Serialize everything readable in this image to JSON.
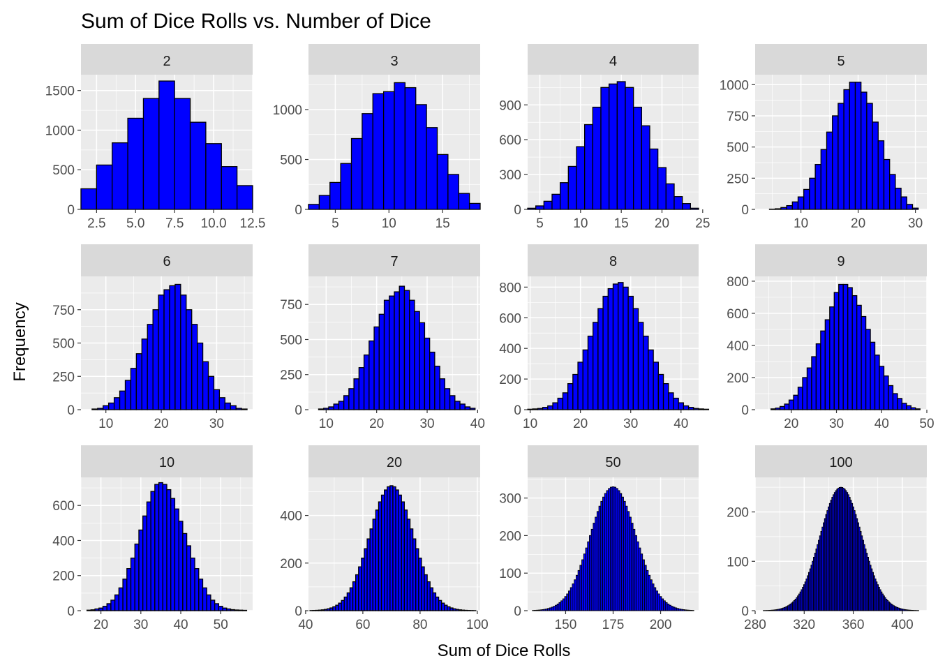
{
  "title": "Sum of Dice Rolls vs. Number of Dice",
  "xlabel": "Sum of Dice Rolls",
  "ylabel": "Frequency",
  "colors": {
    "bar_fill": "#0000ff",
    "bar_stroke": "#000000",
    "panel_bg": "#ebebeb",
    "grid": "#ffffff",
    "strip_bg": "#d9d9d9",
    "tick_text": "#4d4d4d"
  },
  "chart_data": [
    {
      "type": "bar",
      "panel": "2",
      "facet": "2",
      "categories": [
        2,
        3,
        4,
        5,
        6,
        7,
        8,
        9,
        10,
        11,
        12
      ],
      "values": [
        260,
        560,
        840,
        1150,
        1400,
        1620,
        1400,
        1100,
        830,
        540,
        300
      ],
      "xlim": [
        1.5,
        12.5
      ],
      "ylim": [
        0,
        1700
      ],
      "xticks": [
        2.5,
        5.0,
        7.5,
        10.0,
        12.5
      ],
      "xtick_labels": [
        "2.5",
        "5.0",
        "7.5",
        "10.0",
        "12.5"
      ],
      "yticks": [
        0,
        500,
        1000,
        1500
      ],
      "ytick_labels": [
        "0",
        "500",
        "1000",
        "1500"
      ]
    },
    {
      "type": "bar",
      "panel": "3",
      "facet": "3",
      "categories": [
        3,
        4,
        5,
        6,
        7,
        8,
        9,
        10,
        11,
        12,
        13,
        14,
        15,
        16,
        17,
        18
      ],
      "values": [
        50,
        140,
        270,
        460,
        710,
        960,
        1160,
        1180,
        1270,
        1220,
        1050,
        820,
        550,
        350,
        160,
        60
      ],
      "xlim": [
        2.5,
        18.5
      ],
      "ylim": [
        0,
        1350
      ],
      "xticks": [
        5,
        10,
        15
      ],
      "xtick_labels": [
        "5",
        "10",
        "15"
      ],
      "yticks": [
        0,
        500,
        1000
      ],
      "ytick_labels": [
        "0",
        "500",
        "1000"
      ]
    },
    {
      "type": "bar",
      "panel": "4",
      "facet": "4",
      "categories": [
        4,
        5,
        6,
        7,
        8,
        9,
        10,
        11,
        12,
        13,
        14,
        15,
        16,
        17,
        18,
        19,
        20,
        21,
        22,
        23,
        24
      ],
      "values": [
        10,
        30,
        70,
        130,
        230,
        370,
        540,
        730,
        880,
        1050,
        1080,
        1100,
        1050,
        880,
        720,
        520,
        360,
        220,
        110,
        50,
        10
      ],
      "xlim": [
        3.5,
        24.5
      ],
      "ylim": [
        0,
        1160
      ],
      "xticks": [
        5,
        10,
        15,
        20,
        25
      ],
      "xtick_labels": [
        "5",
        "10",
        "15",
        "20",
        "25"
      ],
      "yticks": [
        0,
        300,
        600,
        900
      ],
      "ytick_labels": [
        "0",
        "300",
        "600",
        "900"
      ]
    },
    {
      "type": "bar",
      "panel": "5",
      "facet": "5",
      "categories": [
        5,
        6,
        7,
        8,
        9,
        10,
        11,
        12,
        13,
        14,
        15,
        16,
        17,
        18,
        19,
        20,
        21,
        22,
        23,
        24,
        25,
        26,
        27,
        28,
        29,
        30
      ],
      "values": [
        2,
        5,
        15,
        30,
        60,
        100,
        160,
        250,
        360,
        480,
        620,
        750,
        850,
        960,
        1020,
        1020,
        940,
        850,
        700,
        550,
        400,
        280,
        170,
        100,
        40,
        10
      ],
      "xlim": [
        2,
        32
      ],
      "ylim": [
        0,
        1080
      ],
      "xticks": [
        10,
        20,
        30
      ],
      "xtick_labels": [
        "10",
        "20",
        "30"
      ],
      "yticks": [
        0,
        250,
        500,
        750,
        1000
      ],
      "ytick_labels": [
        "0",
        "250",
        "500",
        "750",
        "1000"
      ]
    },
    {
      "type": "bar",
      "panel": "6",
      "facet": "6",
      "categories": [
        8,
        9,
        10,
        11,
        12,
        13,
        14,
        15,
        16,
        17,
        18,
        19,
        20,
        21,
        22,
        23,
        24,
        25,
        26,
        27,
        28,
        29,
        30,
        31,
        32,
        33,
        34,
        35
      ],
      "values": [
        5,
        10,
        30,
        50,
        90,
        140,
        220,
        310,
        420,
        530,
        640,
        750,
        860,
        900,
        930,
        940,
        860,
        750,
        640,
        500,
        360,
        250,
        150,
        90,
        50,
        30,
        10,
        5
      ],
      "xlim": [
        5.5,
        36.5
      ],
      "ylim": [
        0,
        1000
      ],
      "xticks": [
        10,
        20,
        30
      ],
      "xtick_labels": [
        "10",
        "20",
        "30"
      ],
      "yticks": [
        0,
        250,
        500,
        750
      ],
      "ytick_labels": [
        "0",
        "250",
        "500",
        "750"
      ]
    },
    {
      "type": "bar",
      "panel": "7",
      "facet": "7",
      "categories": [
        9,
        10,
        11,
        12,
        13,
        14,
        15,
        16,
        17,
        18,
        19,
        20,
        21,
        22,
        23,
        24,
        25,
        26,
        27,
        28,
        29,
        30,
        31,
        32,
        33,
        34,
        35,
        36,
        37,
        38,
        39
      ],
      "values": [
        5,
        10,
        20,
        40,
        60,
        100,
        150,
        220,
        300,
        390,
        490,
        590,
        680,
        780,
        810,
        840,
        880,
        850,
        780,
        700,
        620,
        510,
        410,
        310,
        220,
        150,
        100,
        60,
        40,
        20,
        10
      ],
      "xlim": [
        6.5,
        40.5
      ],
      "ylim": [
        0,
        950
      ],
      "xticks": [
        10,
        20,
        30,
        40
      ],
      "xtick_labels": [
        "10",
        "20",
        "30",
        "40"
      ],
      "yticks": [
        0,
        250,
        500,
        750
      ],
      "ytick_labels": [
        "0",
        "250",
        "500",
        "750"
      ]
    },
    {
      "type": "bar",
      "panel": "8",
      "facet": "8",
      "categories": [
        10,
        11,
        12,
        13,
        14,
        15,
        16,
        17,
        18,
        19,
        20,
        21,
        22,
        23,
        24,
        25,
        26,
        27,
        28,
        29,
        30,
        31,
        32,
        33,
        34,
        35,
        36,
        37,
        38,
        39,
        40,
        41,
        42,
        43,
        44,
        45
      ],
      "values": [
        3,
        5,
        8,
        15,
        25,
        45,
        75,
        110,
        170,
        230,
        310,
        390,
        480,
        570,
        660,
        740,
        790,
        820,
        830,
        800,
        740,
        660,
        570,
        480,
        390,
        310,
        230,
        170,
        110,
        75,
        45,
        25,
        15,
        8,
        5,
        3
      ],
      "xlim": [
        9.5,
        43.5
      ],
      "ylim": [
        0,
        870
      ],
      "xticks": [
        10,
        20,
        30,
        40
      ],
      "xtick_labels": [
        "10",
        "20",
        "30",
        "40"
      ],
      "yticks": [
        0,
        200,
        400,
        600,
        800
      ],
      "ytick_labels": [
        "0",
        "200",
        "400",
        "600",
        "800"
      ]
    },
    {
      "type": "bar",
      "panel": "9",
      "facet": "9",
      "categories": [
        16,
        17,
        18,
        19,
        20,
        21,
        22,
        23,
        24,
        25,
        26,
        27,
        28,
        29,
        30,
        31,
        32,
        33,
        34,
        35,
        36,
        37,
        38,
        39,
        40,
        41,
        42,
        43,
        44,
        45,
        46,
        47,
        48
      ],
      "values": [
        5,
        10,
        20,
        35,
        60,
        90,
        140,
        200,
        260,
        330,
        410,
        490,
        560,
        640,
        730,
        780,
        780,
        760,
        710,
        650,
        580,
        500,
        420,
        340,
        270,
        210,
        150,
        100,
        70,
        40,
        25,
        12,
        5
      ],
      "xlim": [
        12,
        50
      ],
      "ylim": [
        0,
        830
      ],
      "xticks": [
        20,
        30,
        40,
        50
      ],
      "xtick_labels": [
        "20",
        "30",
        "40",
        "50"
      ],
      "yticks": [
        0,
        200,
        400,
        600,
        800
      ],
      "ytick_labels": [
        "0",
        "200",
        "400",
        "600",
        "800"
      ]
    },
    {
      "type": "histogram",
      "panel": "10",
      "facet": "10",
      "x": [
        17,
        18,
        19,
        20,
        21,
        22,
        23,
        24,
        25,
        26,
        27,
        28,
        29,
        30,
        31,
        32,
        33,
        34,
        35,
        36,
        37,
        38,
        39,
        40,
        41,
        42,
        43,
        44,
        45,
        46,
        47,
        48,
        49,
        50,
        51,
        52,
        53,
        54,
        55,
        56
      ],
      "values": [
        3,
        5,
        10,
        15,
        25,
        40,
        60,
        90,
        130,
        180,
        240,
        300,
        380,
        460,
        540,
        620,
        680,
        720,
        730,
        720,
        690,
        640,
        580,
        510,
        440,
        370,
        300,
        240,
        180,
        130,
        90,
        60,
        40,
        25,
        15,
        10,
        6,
        4,
        3,
        2
      ],
      "xlim": [
        15,
        58
      ],
      "ylim": [
        0,
        760
      ],
      "xticks": [
        20,
        30,
        40,
        50
      ],
      "xtick_labels": [
        "20",
        "30",
        "40",
        "50"
      ],
      "yticks": [
        0,
        200,
        400,
        600
      ],
      "ytick_labels": [
        "0",
        "200",
        "400",
        "600"
      ]
    },
    {
      "type": "histogram",
      "panel": "20",
      "facet": "20",
      "x_start": 42,
      "x_end": 99,
      "mean": 70,
      "peak": 525,
      "sd": 7.6,
      "xlim": [
        41,
        101
      ],
      "ylim": [
        0,
        560
      ],
      "xticks": [
        40,
        60,
        80,
        100
      ],
      "xtick_labels": [
        "40",
        "60",
        "80",
        "100"
      ],
      "yticks": [
        0,
        200,
        400
      ],
      "ytick_labels": [
        "0",
        "200",
        "400"
      ]
    },
    {
      "type": "histogram",
      "panel": "50",
      "facet": "50",
      "x_start": 133,
      "x_end": 217,
      "mean": 175,
      "peak": 330,
      "sd": 12,
      "xlim": [
        130,
        220
      ],
      "ylim": [
        0,
        355
      ],
      "xticks": [
        150,
        175,
        200
      ],
      "xtick_labels": [
        "150",
        "175",
        "200"
      ],
      "yticks": [
        0,
        100,
        200,
        300
      ],
      "ytick_labels": [
        "0",
        "100",
        "200",
        "300"
      ]
    },
    {
      "type": "histogram",
      "panel": "100",
      "facet": "100",
      "x_start": 287,
      "x_end": 413,
      "mean": 350,
      "peak": 250,
      "sd": 17,
      "xlim": [
        280,
        420
      ],
      "ylim": [
        0,
        270
      ],
      "xticks": [
        280,
        320,
        360,
        400
      ],
      "xtick_labels": [
        "280",
        "320",
        "360",
        "400"
      ],
      "yticks": [
        0,
        100,
        200
      ],
      "ytick_labels": [
        "0",
        "100",
        "200"
      ]
    }
  ]
}
